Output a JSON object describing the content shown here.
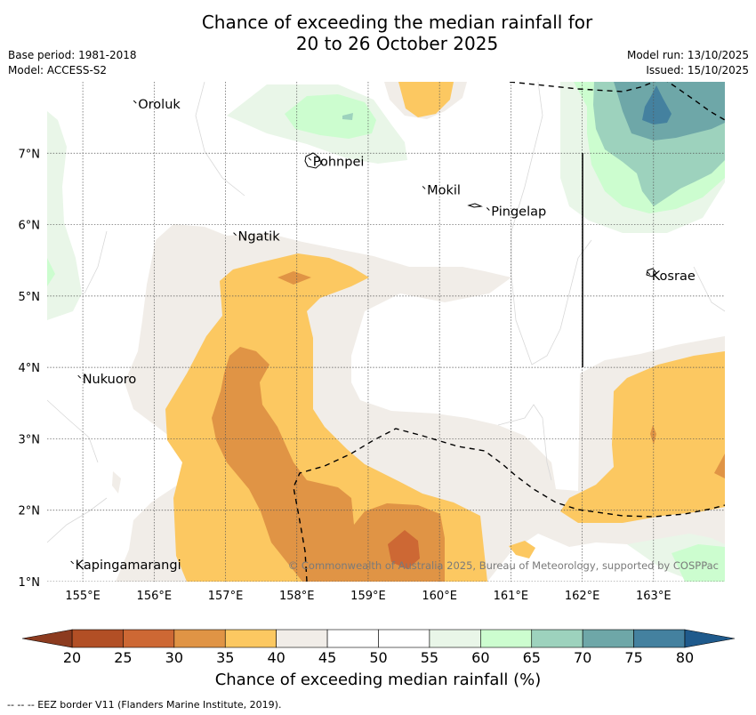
{
  "title": {
    "line1": "Chance of exceeding the median rainfall for",
    "line2": "20 to 26 October 2025"
  },
  "meta": {
    "base_period": "Base period: 1981-2018",
    "model": "Model: ACCESS-S2",
    "model_run": "Model run: 13/10/2025",
    "issued": "Issued: 15/10/2025"
  },
  "map": {
    "lon_range": [
      154.5,
      164.0
    ],
    "lat_range": [
      1.0,
      8.0
    ],
    "lon_ticks": [
      155,
      156,
      157,
      158,
      159,
      160,
      161,
      162,
      163
    ],
    "lon_tick_labels": [
      "155°E",
      "156°E",
      "157°E",
      "158°E",
      "159°E",
      "160°E",
      "161°E",
      "162°E",
      "163°E"
    ],
    "lat_ticks": [
      1,
      2,
      3,
      4,
      5,
      6,
      7
    ],
    "lat_tick_labels": [
      "1°N",
      "2°N",
      "3°N",
      "4°N",
      "5°N",
      "6°N",
      "7°N"
    ],
    "places": [
      {
        "name": "Oroluk",
        "lon": 155.75,
        "lat": 7.7
      },
      {
        "name": "Pohnpei",
        "lon": 158.2,
        "lat": 6.9
      },
      {
        "name": "Mokil",
        "lon": 159.8,
        "lat": 6.5
      },
      {
        "name": "Pingelap",
        "lon": 160.7,
        "lat": 6.2
      },
      {
        "name": "Ngatik",
        "lon": 157.15,
        "lat": 5.85
      },
      {
        "name": "Kosrae",
        "lon": 162.95,
        "lat": 5.3
      },
      {
        "name": "Nukuoro",
        "lon": 154.97,
        "lat": 3.85
      },
      {
        "name": "Kapingamarangi",
        "lon": 154.87,
        "lat": 1.25
      }
    ],
    "copyright": "© Commonwealth of Australia 2025, Bureau of Meteorology, supported by COSPPac"
  },
  "colorbar": {
    "ticks": [
      20,
      25,
      30,
      35,
      40,
      45,
      50,
      55,
      60,
      65,
      70,
      75,
      80
    ],
    "colors": [
      "#b24f25",
      "#cd6834",
      "#e09445",
      "#fcc861",
      "#f1ede8",
      "#ffffff",
      "#ffffff",
      "#e9f6e8",
      "#ccfdcf",
      "#9dd2bd",
      "#6ea7a8",
      "#44819f"
    ],
    "under_color": "#8c3b1f",
    "over_color": "#1f5a8c",
    "label": "Chance of exceeding median rainfall (%)"
  },
  "footnote": "--  --  -- EEZ border V11 (Flanders Marine Institute, 2019)."
}
